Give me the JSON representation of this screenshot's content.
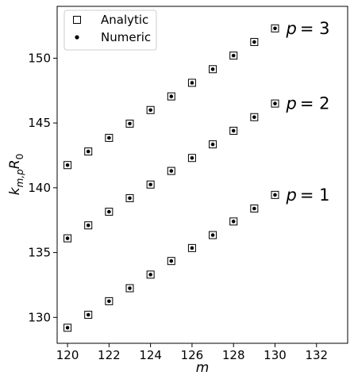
{
  "chart_data": {
    "type": "scatter",
    "x": [
      120,
      121,
      122,
      123,
      124,
      125,
      126,
      127,
      128,
      129,
      130
    ],
    "series": [
      {
        "name": "Analytic",
        "marker": "open-square",
        "group": "p1",
        "values": [
          129.2,
          130.2,
          131.25,
          132.25,
          133.3,
          134.35,
          135.35,
          136.35,
          137.4,
          138.4,
          139.45
        ]
      },
      {
        "name": "Numeric",
        "marker": "dot",
        "group": "p1",
        "values": [
          129.2,
          130.2,
          131.25,
          132.25,
          133.3,
          134.35,
          135.35,
          136.35,
          137.4,
          138.4,
          139.45
        ]
      },
      {
        "name": "Analytic",
        "marker": "open-square",
        "group": "p2",
        "values": [
          136.1,
          137.1,
          138.15,
          139.2,
          140.25,
          141.3,
          142.3,
          143.35,
          144.4,
          145.45,
          146.5
        ]
      },
      {
        "name": "Numeric",
        "marker": "dot",
        "group": "p2",
        "values": [
          136.1,
          137.1,
          138.15,
          139.2,
          140.25,
          141.3,
          142.3,
          143.35,
          144.4,
          145.45,
          146.5
        ]
      },
      {
        "name": "Analytic",
        "marker": "open-square",
        "group": "p3",
        "values": [
          141.75,
          142.8,
          143.85,
          144.95,
          146.0,
          147.05,
          148.1,
          149.15,
          150.2,
          151.25,
          152.3
        ]
      },
      {
        "name": "Numeric",
        "marker": "dot",
        "group": "p3",
        "values": [
          141.75,
          142.8,
          143.85,
          144.95,
          146.0,
          147.05,
          148.1,
          149.15,
          150.2,
          151.25,
          152.3
        ]
      }
    ],
    "xlabel": "m",
    "ylabel": "k_{m,p}R_0",
    "xlim": [
      119.5,
      133.5
    ],
    "ylim": [
      128,
      154
    ],
    "xticks": [
      120,
      122,
      124,
      126,
      128,
      130,
      132
    ],
    "yticks": [
      130,
      135,
      140,
      145,
      150
    ],
    "grid": false,
    "legend": {
      "placement": "top-left",
      "entries": [
        {
          "label": "Analytic",
          "marker": "open-square"
        },
        {
          "label": "Numeric",
          "marker": "dot"
        }
      ]
    },
    "annotations": [
      {
        "label_var": "p",
        "label_value": "= 3",
        "x": 130,
        "y": 152.3
      },
      {
        "label_var": "p",
        "label_value": "= 2",
        "x": 130,
        "y": 146.5
      },
      {
        "label_var": "p",
        "label_value": "= 1",
        "x": 130,
        "y": 139.45
      }
    ],
    "colors": {
      "marker_edge": "#000000",
      "marker_face": "#ffffff",
      "dot": "#000000"
    }
  }
}
